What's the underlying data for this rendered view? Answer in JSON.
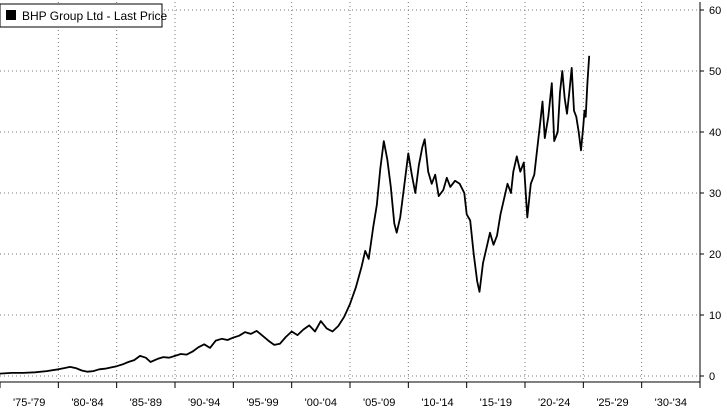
{
  "chart_data": {
    "type": "line",
    "title": "",
    "xlabel": "",
    "ylabel": "",
    "legend_placement": "top-left",
    "grid": true,
    "ylim": [
      0,
      60
    ],
    "xlim": [
      1975,
      2035
    ],
    "yticks": [
      0,
      10,
      20,
      30,
      40,
      50,
      60
    ],
    "ytick_labels": [
      "0",
      "10",
      "20",
      "30",
      "40",
      "50",
      "60"
    ],
    "x_categories": [
      "'75-'79",
      "'80-'84",
      "'85-'89",
      "'90-'94",
      "'95-'99",
      "'00-'04",
      "'05-'09",
      "'10-'14",
      "'15-'19",
      "'20-'24",
      "'25-'29",
      "'30-'34"
    ],
    "series": [
      {
        "name": "BHP Group Ltd - Last Price",
        "color": "#000000",
        "points": [
          [
            1975.0,
            0.4
          ],
          [
            1976.0,
            0.5
          ],
          [
            1977.0,
            0.5
          ],
          [
            1978.0,
            0.6
          ],
          [
            1979.0,
            0.8
          ],
          [
            1980.0,
            1.1
          ],
          [
            1980.5,
            1.3
          ],
          [
            1981.0,
            1.5
          ],
          [
            1981.5,
            1.3
          ],
          [
            1982.0,
            0.9
          ],
          [
            1982.5,
            0.7
          ],
          [
            1983.0,
            0.8
          ],
          [
            1983.5,
            1.1
          ],
          [
            1984.0,
            1.2
          ],
          [
            1984.5,
            1.4
          ],
          [
            1985.0,
            1.6
          ],
          [
            1985.5,
            1.9
          ],
          [
            1986.0,
            2.3
          ],
          [
            1986.5,
            2.6
          ],
          [
            1987.0,
            3.3
          ],
          [
            1987.5,
            3.0
          ],
          [
            1987.9,
            2.3
          ],
          [
            1988.5,
            2.8
          ],
          [
            1989.0,
            3.1
          ],
          [
            1989.5,
            3.0
          ],
          [
            1990.0,
            3.3
          ],
          [
            1990.5,
            3.6
          ],
          [
            1991.0,
            3.5
          ],
          [
            1991.5,
            4.0
          ],
          [
            1992.0,
            4.7
          ],
          [
            1992.5,
            5.2
          ],
          [
            1993.0,
            4.6
          ],
          [
            1993.5,
            5.8
          ],
          [
            1994.0,
            6.1
          ],
          [
            1994.5,
            5.9
          ],
          [
            1995.0,
            6.3
          ],
          [
            1995.5,
            6.6
          ],
          [
            1996.0,
            7.2
          ],
          [
            1996.5,
            6.9
          ],
          [
            1997.0,
            7.4
          ],
          [
            1997.5,
            6.6
          ],
          [
            1998.0,
            5.8
          ],
          [
            1998.5,
            5.1
          ],
          [
            1999.0,
            5.3
          ],
          [
            1999.5,
            6.4
          ],
          [
            2000.0,
            7.3
          ],
          [
            2000.5,
            6.7
          ],
          [
            2001.0,
            7.6
          ],
          [
            2001.5,
            8.3
          ],
          [
            2002.0,
            7.3
          ],
          [
            2002.5,
            9.0
          ],
          [
            2003.0,
            7.8
          ],
          [
            2003.5,
            7.3
          ],
          [
            2004.0,
            8.2
          ],
          [
            2004.5,
            9.7
          ],
          [
            2005.0,
            11.8
          ],
          [
            2005.5,
            14.5
          ],
          [
            2006.0,
            18.0
          ],
          [
            2006.3,
            20.5
          ],
          [
            2006.6,
            19.2
          ],
          [
            2007.0,
            24.5
          ],
          [
            2007.3,
            28.0
          ],
          [
            2007.6,
            34.0
          ],
          [
            2007.9,
            38.5
          ],
          [
            2008.2,
            35.5
          ],
          [
            2008.5,
            31.0
          ],
          [
            2008.8,
            25.0
          ],
          [
            2009.0,
            23.5
          ],
          [
            2009.3,
            26.0
          ],
          [
            2009.6,
            30.5
          ],
          [
            2010.0,
            36.5
          ],
          [
            2010.3,
            33.0
          ],
          [
            2010.6,
            30.0
          ],
          [
            2010.9,
            34.5
          ],
          [
            2011.2,
            37.5
          ],
          [
            2011.4,
            38.8
          ],
          [
            2011.7,
            33.5
          ],
          [
            2012.0,
            31.5
          ],
          [
            2012.3,
            33.0
          ],
          [
            2012.6,
            29.5
          ],
          [
            2013.0,
            30.5
          ],
          [
            2013.3,
            32.5
          ],
          [
            2013.6,
            31.0
          ],
          [
            2014.0,
            32.0
          ],
          [
            2014.4,
            31.5
          ],
          [
            2014.8,
            30.0
          ],
          [
            2015.0,
            26.5
          ],
          [
            2015.3,
            25.5
          ],
          [
            2015.6,
            20.0
          ],
          [
            2015.9,
            15.5
          ],
          [
            2016.1,
            13.8
          ],
          [
            2016.4,
            18.5
          ],
          [
            2016.7,
            21.0
          ],
          [
            2017.0,
            23.5
          ],
          [
            2017.3,
            21.5
          ],
          [
            2017.6,
            23.0
          ],
          [
            2017.9,
            26.5
          ],
          [
            2018.2,
            29.0
          ],
          [
            2018.5,
            31.5
          ],
          [
            2018.8,
            30.0
          ],
          [
            2019.0,
            33.5
          ],
          [
            2019.3,
            36.0
          ],
          [
            2019.6,
            33.5
          ],
          [
            2019.9,
            35.0
          ],
          [
            2020.2,
            26.0
          ],
          [
            2020.5,
            31.5
          ],
          [
            2020.8,
            33.0
          ],
          [
            2021.0,
            36.5
          ],
          [
            2021.3,
            41.5
          ],
          [
            2021.5,
            45.0
          ],
          [
            2021.7,
            39.0
          ],
          [
            2022.0,
            42.5
          ],
          [
            2022.3,
            48.0
          ],
          [
            2022.5,
            38.5
          ],
          [
            2022.8,
            40.0
          ],
          [
            2023.0,
            46.5
          ],
          [
            2023.2,
            50.0
          ],
          [
            2023.4,
            45.5
          ],
          [
            2023.6,
            43.0
          ],
          [
            2023.8,
            46.5
          ],
          [
            2024.0,
            50.5
          ],
          [
            2024.2,
            43.5
          ],
          [
            2024.4,
            42.5
          ],
          [
            2024.6,
            40.0
          ],
          [
            2024.8,
            37.0
          ],
          [
            2025.0,
            41.0
          ],
          [
            2025.1,
            43.5
          ],
          [
            2025.2,
            42.5
          ],
          [
            2025.35,
            48.0
          ],
          [
            2025.5,
            52.5
          ]
        ]
      }
    ]
  }
}
